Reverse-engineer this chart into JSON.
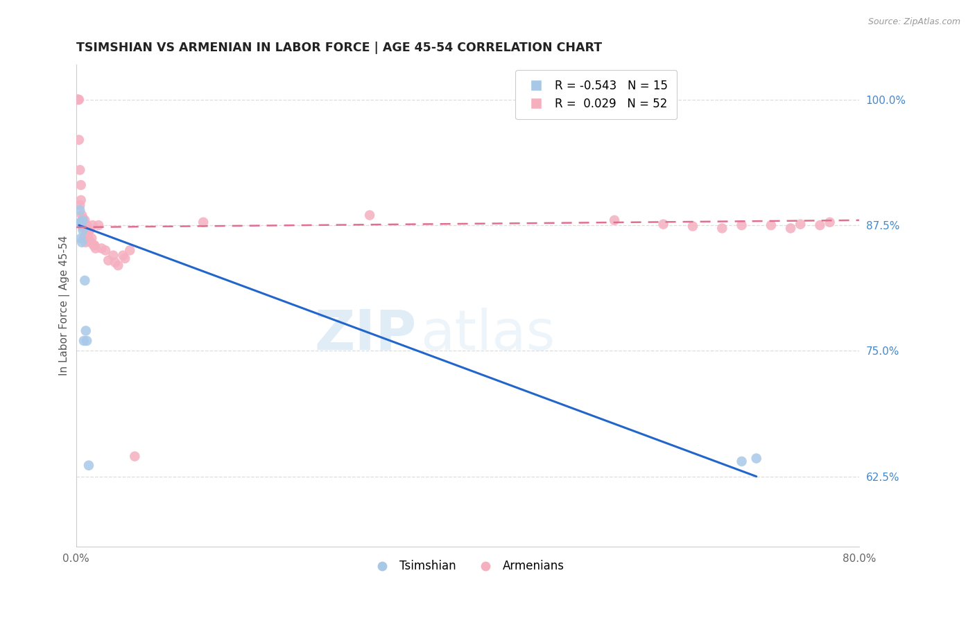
{
  "title": "TSIMSHIAN VS ARMENIAN IN LABOR FORCE | AGE 45-54 CORRELATION CHART",
  "source": "Source: ZipAtlas.com",
  "ylabel": "In Labor Force | Age 45-54",
  "xlim": [
    0.0,
    0.8
  ],
  "ylim": [
    0.555,
    1.035
  ],
  "x_ticks": [
    0.0,
    0.1,
    0.2,
    0.3,
    0.4,
    0.5,
    0.6,
    0.7,
    0.8
  ],
  "x_tick_labels": [
    "0.0%",
    "",
    "",
    "",
    "",
    "",
    "",
    "",
    "80.0%"
  ],
  "y_ticks_right": [
    0.625,
    0.75,
    0.875,
    1.0
  ],
  "y_tick_labels_right": [
    "62.5%",
    "75.0%",
    "87.5%",
    "100.0%"
  ],
  "watermark_zip": "ZIP",
  "watermark_atlas": "atlas",
  "legend_blue_r": "-0.543",
  "legend_blue_n": "15",
  "legend_pink_r": "0.029",
  "legend_pink_n": "52",
  "tsimshian_color": "#a8c8e8",
  "armenian_color": "#f5b0c0",
  "blue_line_color": "#2266cc",
  "pink_line_color": "#e07090",
  "background_color": "#ffffff",
  "grid_color": "#dddddd",
  "tsimshian_x": [
    0.003,
    0.004,
    0.005,
    0.005,
    0.006,
    0.006,
    0.007,
    0.007,
    0.008,
    0.009,
    0.01,
    0.011,
    0.013,
    0.68,
    0.695
  ],
  "tsimshian_y": [
    0.877,
    0.89,
    0.878,
    0.862,
    0.878,
    0.858,
    0.88,
    0.87,
    0.76,
    0.82,
    0.77,
    0.76,
    0.636,
    0.64,
    0.643
  ],
  "armenian_x": [
    0.001,
    0.002,
    0.002,
    0.003,
    0.003,
    0.004,
    0.004,
    0.005,
    0.005,
    0.006,
    0.006,
    0.007,
    0.007,
    0.008,
    0.008,
    0.009,
    0.009,
    0.01,
    0.01,
    0.011,
    0.012,
    0.013,
    0.014,
    0.015,
    0.016,
    0.017,
    0.018,
    0.019,
    0.02,
    0.023,
    0.026,
    0.03,
    0.033,
    0.038,
    0.04,
    0.043,
    0.048,
    0.05,
    0.055,
    0.06,
    0.13,
    0.3,
    0.55,
    0.6,
    0.63,
    0.66,
    0.68,
    0.71,
    0.73,
    0.74,
    0.76,
    0.77
  ],
  "armenian_y": [
    1.0,
    1.0,
    1.0,
    0.96,
    1.0,
    0.93,
    0.895,
    0.915,
    0.9,
    0.885,
    0.878,
    0.882,
    0.873,
    0.878,
    0.862,
    0.88,
    0.872,
    0.87,
    0.858,
    0.875,
    0.868,
    0.862,
    0.87,
    0.858,
    0.862,
    0.875,
    0.855,
    0.855,
    0.852,
    0.875,
    0.852,
    0.85,
    0.84,
    0.845,
    0.838,
    0.835,
    0.845,
    0.842,
    0.85,
    0.645,
    0.878,
    0.885,
    0.88,
    0.876,
    0.874,
    0.872,
    0.875,
    0.875,
    0.872,
    0.876,
    0.875,
    0.878
  ],
  "blue_line_x": [
    0.003,
    0.695
  ],
  "blue_line_y": [
    0.875,
    0.625
  ],
  "pink_line_x": [
    0.0,
    0.8
  ],
  "pink_line_y": [
    0.873,
    0.88
  ]
}
